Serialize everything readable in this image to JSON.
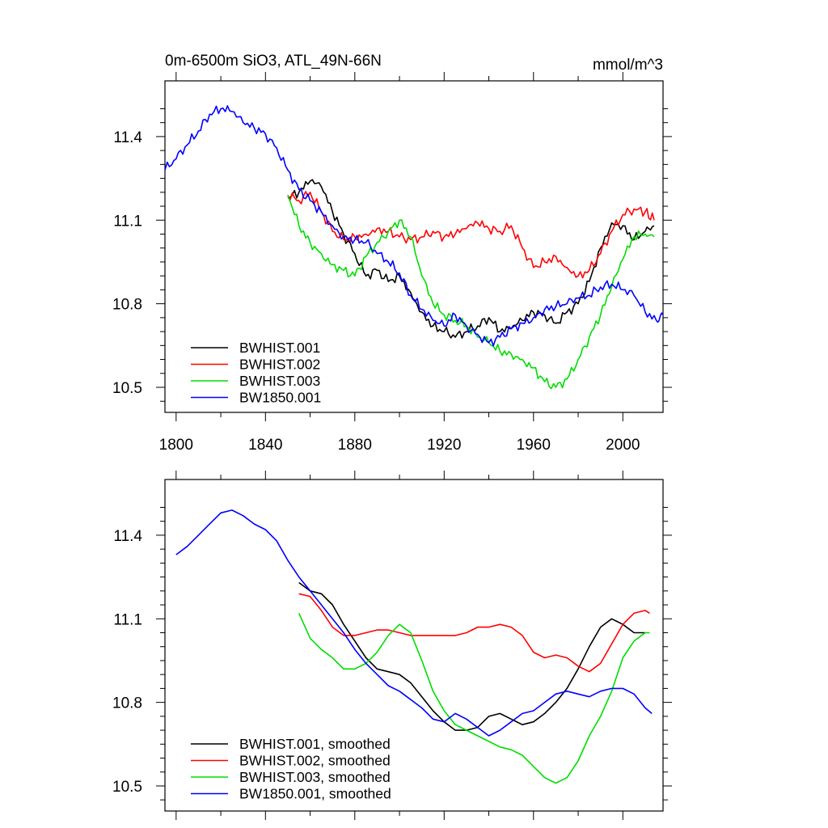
{
  "title_left": "0m-6500m SiO3, ATL_49N-66N",
  "title_right": "mmol/m^3",
  "colors": {
    "black": "#000000",
    "red": "#ff0000",
    "green": "#00dd00",
    "blue": "#0000ff"
  },
  "chart_data": [
    {
      "type": "line",
      "panel": "top",
      "xlim": [
        1795,
        2018
      ],
      "ylim": [
        10.41,
        11.6
      ],
      "xticks": [
        1800,
        1840,
        1880,
        1920,
        1960,
        2000
      ],
      "xtick_labels": [
        "1800",
        "1840",
        "1880",
        "1920",
        "1960",
        "2000"
      ],
      "yticks": [
        10.5,
        10.8,
        11.1,
        11.4
      ],
      "ytick_labels": [
        "10.5",
        "10.8",
        "11.1",
        "11.4"
      ],
      "legend_position": "bottom-left",
      "series": [
        {
          "name": "BWHIST.001",
          "color": "#000000",
          "x": [
            1850,
            1855,
            1860,
            1865,
            1870,
            1875,
            1880,
            1885,
            1890,
            1895,
            1900,
            1905,
            1910,
            1915,
            1920,
            1925,
            1930,
            1935,
            1940,
            1945,
            1950,
            1955,
            1960,
            1965,
            1970,
            1975,
            1980,
            1985,
            1990,
            1995,
            2000,
            2005,
            2010,
            2014
          ],
          "y": [
            11.18,
            11.2,
            11.24,
            11.22,
            11.13,
            11.05,
            10.98,
            10.9,
            10.92,
            10.88,
            10.9,
            10.84,
            10.77,
            10.72,
            10.7,
            10.68,
            10.7,
            10.72,
            10.75,
            10.7,
            10.71,
            10.74,
            10.77,
            10.76,
            10.73,
            10.77,
            10.8,
            10.88,
            11.0,
            11.09,
            11.08,
            11.03,
            11.06,
            11.08
          ]
        },
        {
          "name": "BWHIST.002",
          "color": "#ff0000",
          "x": [
            1850,
            1855,
            1860,
            1865,
            1870,
            1875,
            1880,
            1885,
            1890,
            1895,
            1900,
            1905,
            1910,
            1915,
            1920,
            1925,
            1930,
            1935,
            1940,
            1945,
            1950,
            1955,
            1960,
            1965,
            1970,
            1975,
            1980,
            1985,
            1990,
            1995,
            2000,
            2005,
            2010,
            2014
          ],
          "y": [
            11.19,
            11.17,
            11.2,
            11.13,
            11.06,
            11.03,
            11.04,
            11.05,
            11.07,
            11.06,
            11.04,
            11.03,
            11.04,
            11.06,
            11.04,
            11.05,
            11.07,
            11.09,
            11.07,
            11.06,
            11.08,
            11.0,
            10.93,
            10.95,
            10.97,
            10.93,
            10.9,
            10.92,
            10.98,
            11.06,
            11.12,
            11.14,
            11.13,
            11.1
          ]
        },
        {
          "name": "BWHIST.003",
          "color": "#00dd00",
          "x": [
            1850,
            1855,
            1860,
            1865,
            1870,
            1875,
            1880,
            1885,
            1890,
            1895,
            1900,
            1905,
            1910,
            1915,
            1920,
            1925,
            1930,
            1935,
            1940,
            1945,
            1950,
            1955,
            1960,
            1965,
            1970,
            1975,
            1980,
            1985,
            1990,
            1995,
            2000,
            2005,
            2010,
            2014
          ],
          "y": [
            11.19,
            11.08,
            11.02,
            10.98,
            10.94,
            10.92,
            10.9,
            10.97,
            11.02,
            11.06,
            11.1,
            11.04,
            10.9,
            10.8,
            10.76,
            10.74,
            10.72,
            10.68,
            10.66,
            10.63,
            10.62,
            10.6,
            10.57,
            10.52,
            10.5,
            10.53,
            10.6,
            10.68,
            10.76,
            10.86,
            10.96,
            11.04,
            11.05,
            11.04
          ]
        },
        {
          "name": "BW1850.001",
          "color": "#0000ff",
          "x": [
            1795,
            1800,
            1805,
            1810,
            1815,
            1820,
            1825,
            1830,
            1835,
            1840,
            1845,
            1850,
            1855,
            1860,
            1865,
            1870,
            1875,
            1880,
            1885,
            1890,
            1895,
            1900,
            1905,
            1910,
            1915,
            1920,
            1925,
            1930,
            1935,
            1940,
            1945,
            1950,
            1955,
            1960,
            1965,
            1970,
            1975,
            1980,
            1985,
            1990,
            1995,
            2000,
            2005,
            2010,
            2015,
            2018
          ],
          "y": [
            11.28,
            11.32,
            11.37,
            11.42,
            11.48,
            11.5,
            11.49,
            11.45,
            11.43,
            11.41,
            11.36,
            11.28,
            11.21,
            11.17,
            11.13,
            11.08,
            11.04,
            11.03,
            11.02,
            10.98,
            10.95,
            10.91,
            10.83,
            10.78,
            10.74,
            10.72,
            10.76,
            10.72,
            10.69,
            10.66,
            10.68,
            10.71,
            10.73,
            10.75,
            10.78,
            10.79,
            10.8,
            10.82,
            10.83,
            10.86,
            10.87,
            10.85,
            10.83,
            10.77,
            10.74,
            10.76
          ]
        }
      ]
    },
    {
      "type": "line",
      "panel": "bottom",
      "xlim": [
        1795,
        2018
      ],
      "ylim": [
        10.41,
        11.6
      ],
      "xticks": [
        1800,
        1840,
        1880,
        1920,
        1960,
        2000
      ],
      "yticks": [
        10.5,
        10.8,
        11.1,
        11.4
      ],
      "ytick_labels": [
        "10.5",
        "10.8",
        "11.1",
        "11.4"
      ],
      "legend_position": "bottom-left",
      "series": [
        {
          "name": "BWHIST.001, smoothed",
          "color": "#000000",
          "x": [
            1855,
            1860,
            1865,
            1870,
            1875,
            1880,
            1885,
            1890,
            1895,
            1900,
            1905,
            1910,
            1915,
            1920,
            1925,
            1930,
            1935,
            1940,
            1945,
            1950,
            1955,
            1960,
            1965,
            1970,
            1975,
            1980,
            1985,
            1990,
            1995,
            2000,
            2005,
            2010
          ],
          "y": [
            11.23,
            11.2,
            11.19,
            11.15,
            11.08,
            11.02,
            10.96,
            10.92,
            10.91,
            10.9,
            10.87,
            10.82,
            10.77,
            10.73,
            10.7,
            10.7,
            10.71,
            10.75,
            10.76,
            10.74,
            10.72,
            10.73,
            10.76,
            10.8,
            10.85,
            10.92,
            11.0,
            11.07,
            11.1,
            11.08,
            11.05,
            11.05
          ]
        },
        {
          "name": "BWHIST.002, smoothed",
          "color": "#ff0000",
          "x": [
            1855,
            1860,
            1865,
            1870,
            1875,
            1880,
            1885,
            1890,
            1895,
            1900,
            1905,
            1910,
            1915,
            1920,
            1925,
            1930,
            1935,
            1940,
            1945,
            1950,
            1955,
            1960,
            1965,
            1970,
            1975,
            1980,
            1985,
            1990,
            1995,
            2000,
            2005,
            2010,
            2012
          ],
          "y": [
            11.19,
            11.18,
            11.13,
            11.07,
            11.04,
            11.04,
            11.05,
            11.06,
            11.06,
            11.05,
            11.04,
            11.04,
            11.04,
            11.04,
            11.04,
            11.05,
            11.07,
            11.07,
            11.08,
            11.07,
            11.04,
            10.98,
            10.96,
            10.97,
            10.96,
            10.93,
            10.91,
            10.94,
            11.01,
            11.08,
            11.12,
            11.13,
            11.12
          ]
        },
        {
          "name": "BWHIST.003, smoothed",
          "color": "#00dd00",
          "x": [
            1855,
            1860,
            1865,
            1870,
            1875,
            1880,
            1885,
            1890,
            1895,
            1900,
            1905,
            1910,
            1915,
            1920,
            1925,
            1930,
            1935,
            1940,
            1945,
            1950,
            1955,
            1960,
            1965,
            1970,
            1975,
            1980,
            1985,
            1990,
            1995,
            2000,
            2005,
            2010,
            2012
          ],
          "y": [
            11.12,
            11.03,
            10.99,
            10.96,
            10.92,
            10.92,
            10.94,
            10.98,
            11.04,
            11.08,
            11.05,
            10.95,
            10.84,
            10.77,
            10.72,
            10.7,
            10.68,
            10.66,
            10.64,
            10.63,
            10.61,
            10.57,
            10.53,
            10.51,
            10.53,
            10.59,
            10.68,
            10.75,
            10.84,
            10.96,
            11.02,
            11.05,
            11.05
          ]
        },
        {
          "name": "BW1850.001, smoothed",
          "color": "#0000ff",
          "x": [
            1800,
            1805,
            1810,
            1815,
            1820,
            1825,
            1830,
            1835,
            1840,
            1845,
            1850,
            1855,
            1860,
            1865,
            1870,
            1875,
            1880,
            1885,
            1890,
            1895,
            1900,
            1905,
            1910,
            1915,
            1920,
            1925,
            1930,
            1935,
            1940,
            1945,
            1950,
            1955,
            1960,
            1965,
            1970,
            1975,
            1980,
            1985,
            1990,
            1995,
            2000,
            2005,
            2010,
            2013
          ],
          "y": [
            11.33,
            11.36,
            11.4,
            11.44,
            11.48,
            11.49,
            11.47,
            11.44,
            11.42,
            11.38,
            11.31,
            11.25,
            11.2,
            11.15,
            11.1,
            11.05,
            10.99,
            10.94,
            10.9,
            10.86,
            10.84,
            10.81,
            10.78,
            10.74,
            10.73,
            10.76,
            10.74,
            10.71,
            10.68,
            10.7,
            10.73,
            10.76,
            10.77,
            10.8,
            10.83,
            10.84,
            10.83,
            10.82,
            10.84,
            10.85,
            10.85,
            10.83,
            10.78,
            10.76
          ]
        }
      ]
    }
  ]
}
